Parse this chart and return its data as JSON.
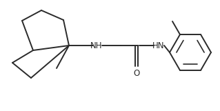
{
  "bg_color": "#ffffff",
  "line_color": "#2a2a2a",
  "line_width": 1.4,
  "fig_width": 3.19,
  "fig_height": 1.61,
  "dpi": 100,
  "nh1_label": "NH",
  "hn2_label": "HN",
  "o_label": "O",
  "nh1_fontsize": 8.5,
  "hn2_fontsize": 8.5,
  "o_fontsize": 8.5
}
